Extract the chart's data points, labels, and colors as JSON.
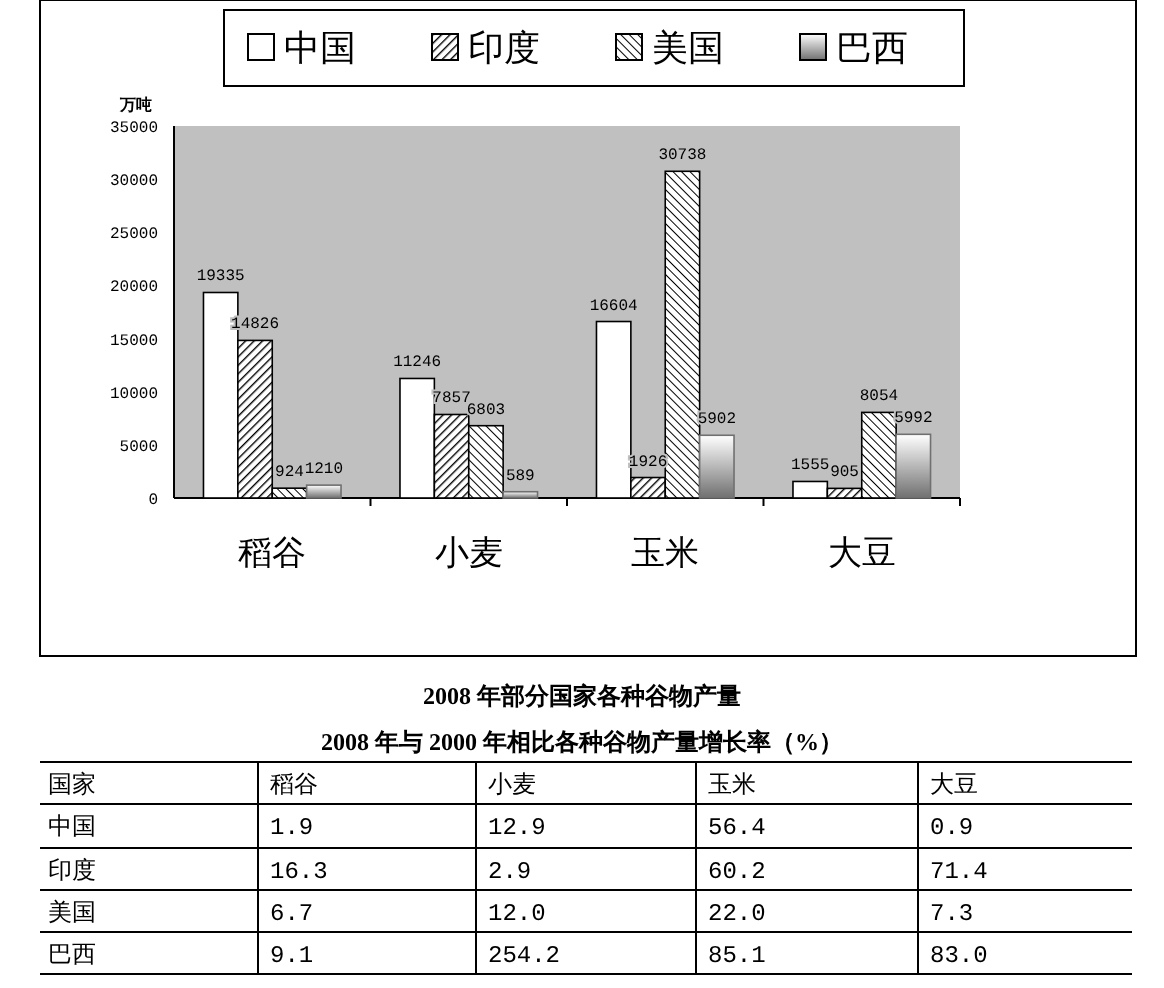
{
  "chart_data": [
    {
      "type": "bar",
      "title": "2008 年部分国家各种谷物产量",
      "ylabel": "万吨",
      "categories": [
        "稻谷",
        "小麦",
        "玉米",
        "大豆"
      ],
      "series": [
        {
          "name": "中国",
          "color": "#ffffff",
          "values": [
            19335,
            11246,
            16604,
            1555
          ]
        },
        {
          "name": "印度",
          "color": "#000000",
          "values": [
            14826,
            7857,
            1926,
            905
          ]
        },
        {
          "name": "美国",
          "color": "#000000",
          "values": [
            924,
            6803,
            30738,
            8054
          ]
        },
        {
          "name": "巴西",
          "color": "#707070",
          "values": [
            1210,
            589,
            5902,
            5992
          ]
        }
      ],
      "ylim": [
        0,
        35000
      ],
      "yticks": [
        0,
        5000,
        10000,
        15000,
        20000,
        25000,
        30000,
        35000
      ],
      "grid": false,
      "legend": "top",
      "data_labels": true
    },
    {
      "type": "heatmap",
      "title": "2008 年与 2000 年相比各种谷物产量增长率（%）",
      "ylabel": "国家",
      "categories": [
        "稻谷",
        "小麦",
        "玉米",
        "大豆"
      ],
      "y_categories": [
        "中国",
        "印度",
        "美国",
        "巴西"
      ],
      "cells": [
        [
          1.9,
          12.9,
          56.4,
          0.9
        ],
        [
          16.3,
          2.9,
          60.2,
          71.4
        ],
        [
          6.7,
          12.0,
          22.0,
          7.3
        ],
        [
          9.1,
          254.2,
          85.1,
          83.0
        ]
      ],
      "cell_labels": [
        [
          "1.9",
          "12.9",
          "56.4",
          "0.9"
        ],
        [
          "16.3",
          "2.9",
          "60.2",
          "71.4"
        ],
        [
          "6.7",
          "12.0",
          "22.0",
          "7.3"
        ],
        [
          "9.1",
          "254.2",
          "85.1",
          "83.0"
        ]
      ],
      "data_labels": true
    }
  ]
}
